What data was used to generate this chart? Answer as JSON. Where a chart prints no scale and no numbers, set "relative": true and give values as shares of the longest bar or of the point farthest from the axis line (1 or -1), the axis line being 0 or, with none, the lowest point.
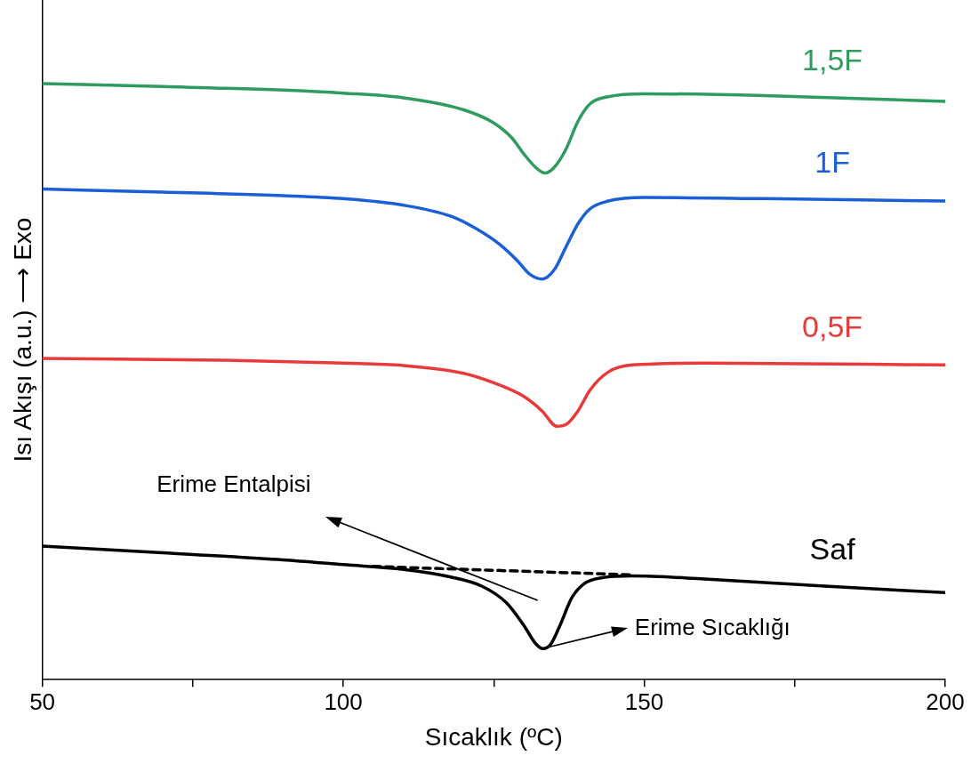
{
  "chart_data": {
    "type": "line",
    "relative": true,
    "xlabel": "Sıcaklık (ºC)",
    "ylabel": "Isı Akışı (a.u.) ⟶ Exo",
    "xlim": [
      50,
      200
    ],
    "xticks": [
      50,
      {
        "value": 75,
        "label": null
      },
      100,
      {
        "value": 125,
        "label": null
      },
      150,
      {
        "value": 175,
        "label": null
      },
      200
    ],
    "grid": false,
    "marker": "none",
    "line_style": "solid",
    "series": [
      {
        "name": "1,5F",
        "color": "#2e9b5f",
        "x": [
          50,
          70,
          90,
          100,
          110,
          120,
          125,
          128,
          130,
          132,
          133.5,
          135,
          137,
          139,
          141,
          144,
          150,
          170,
          200
        ],
        "values": [
          1.0,
          0.995,
          0.989,
          0.984,
          0.976,
          0.956,
          0.934,
          0.909,
          0.882,
          0.859,
          0.85,
          0.859,
          0.89,
          0.937,
          0.966,
          0.978,
          0.983,
          0.98,
          0.97
        ]
      },
      {
        "name": "1F",
        "color": "#1a5fd6",
        "x": [
          50,
          70,
          90,
          100,
          110,
          118,
          122,
          126,
          129,
          131,
          133,
          135,
          137,
          139,
          141,
          144,
          150,
          170,
          200
        ],
        "values": [
          0.823,
          0.818,
          0.812,
          0.807,
          0.796,
          0.777,
          0.757,
          0.73,
          0.702,
          0.68,
          0.672,
          0.687,
          0.726,
          0.765,
          0.79,
          0.803,
          0.809,
          0.807,
          0.803
        ]
      },
      {
        "name": "0,5F",
        "color": "#e8393b",
        "x": [
          50,
          80,
          100,
          110,
          120,
          125,
          130,
          133,
          135.5,
          137,
          139,
          141,
          144,
          148,
          160,
          200
        ],
        "values": [
          0.539,
          0.536,
          0.531,
          0.527,
          0.514,
          0.498,
          0.475,
          0.451,
          0.425,
          0.428,
          0.451,
          0.486,
          0.516,
          0.528,
          0.531,
          0.528
        ]
      },
      {
        "name": "Saf",
        "color": "#000000",
        "x": [
          50,
          70,
          90,
          100,
          110,
          118,
          123,
          127,
          130,
          132,
          133.2,
          134.5,
          136,
          138,
          140,
          143,
          148,
          160,
          180,
          200
        ],
        "values": [
          0.224,
          0.213,
          0.201,
          0.193,
          0.185,
          0.172,
          0.157,
          0.13,
          0.091,
          0.06,
          0.052,
          0.06,
          0.091,
          0.138,
          0.161,
          0.171,
          0.174,
          0.169,
          0.157,
          0.146
        ]
      },
      {
        "color": "#000000",
        "line_style": "dashed",
        "x": [
          105,
          148
        ],
        "values": [
          0.19,
          0.176
        ]
      }
    ],
    "annotations": [
      "Erime Entalpisi",
      {
        "text": "Erime Sıcaklığı",
        "x": 133.2,
        "y": 0.052
      }
    ]
  }
}
